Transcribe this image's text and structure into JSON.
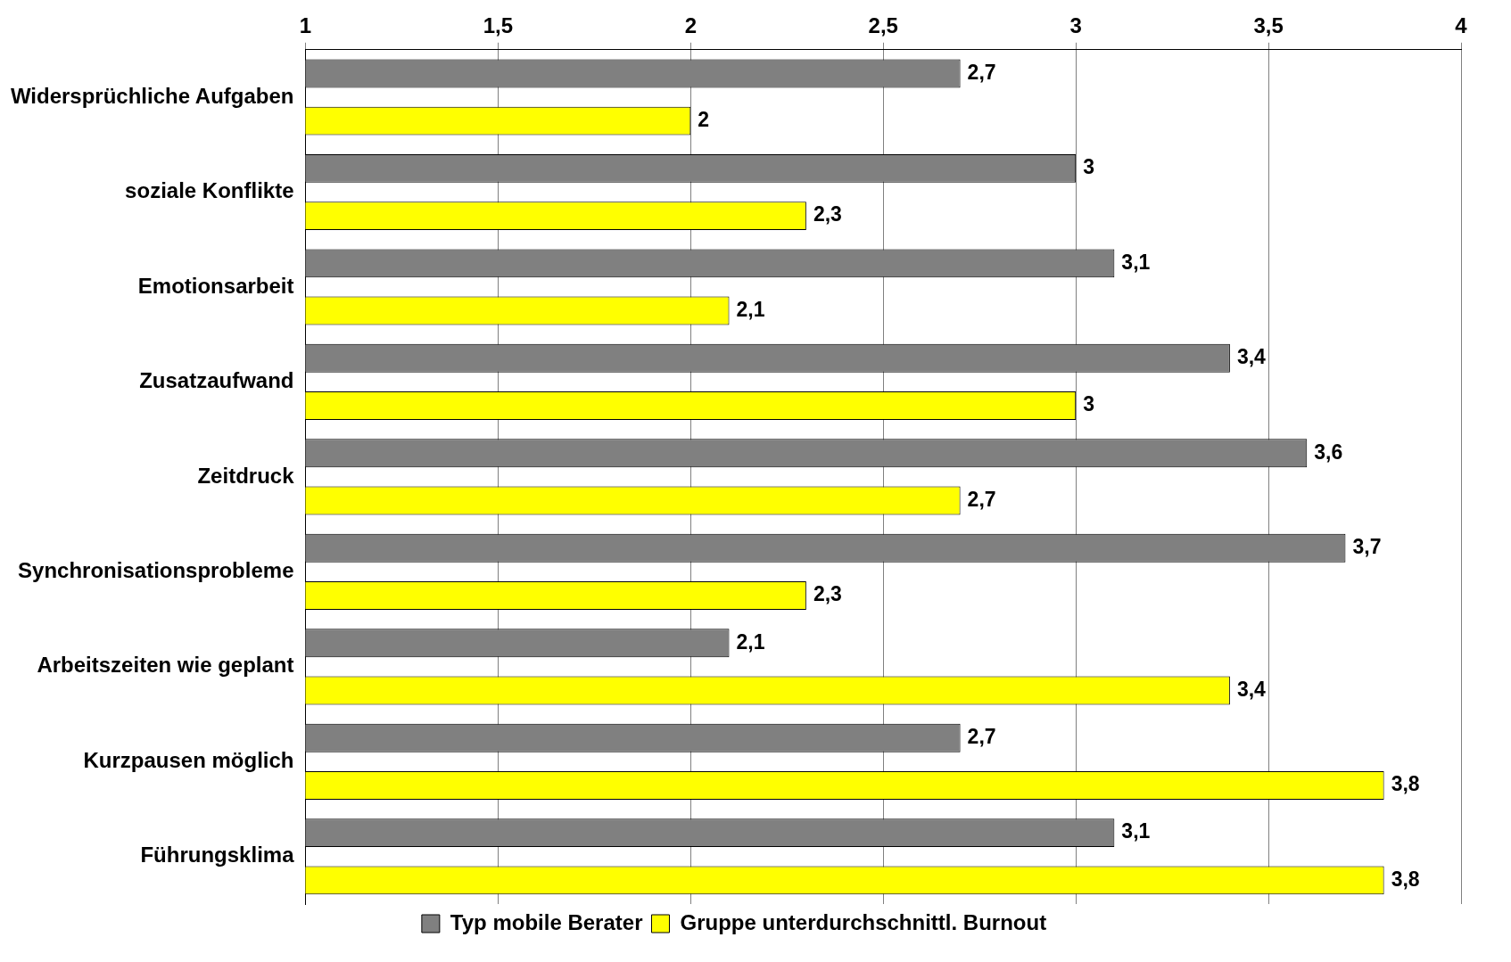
{
  "chart_data": {
    "type": "bar",
    "orientation": "horizontal",
    "categories": [
      "Widersprüchliche Aufgaben",
      "soziale Konflikte",
      "Emotionsarbeit",
      "Zusatzaufwand",
      "Zeitdruck",
      "Synchronisationsprobleme",
      "Arbeitszeiten wie geplant",
      "Kurzpausen möglich",
      "Führungsklima"
    ],
    "series": [
      {
        "name": "Typ mobile Berater",
        "color": "#808080",
        "values": [
          2.7,
          3,
          3.1,
          3.4,
          3.6,
          3.7,
          2.1,
          2.7,
          3.1
        ],
        "value_labels": [
          "2,7",
          "3",
          "3,1",
          "3,4",
          "3,6",
          "3,7",
          "2,1",
          "2,7",
          "3,1"
        ]
      },
      {
        "name": "Gruppe unterdurchschnittl. Burnout",
        "color": "#ffff00",
        "values": [
          2,
          2.3,
          2.1,
          3,
          2.7,
          2.3,
          3.4,
          3.8,
          3.8
        ],
        "value_labels": [
          "2",
          "2,3",
          "2,1",
          "3",
          "2,7",
          "2,3",
          "3,4",
          "3,8",
          "3,8"
        ]
      }
    ],
    "xlim": [
      1,
      4
    ],
    "xticks": [
      1,
      {
        "value": 1.5,
        "label": "1,5"
      },
      2,
      {
        "value": 2.5,
        "label": "2,5"
      },
      3,
      {
        "value": 3.5,
        "label": "3,5"
      },
      4
    ],
    "grid": "x",
    "legend": "bottom"
  }
}
